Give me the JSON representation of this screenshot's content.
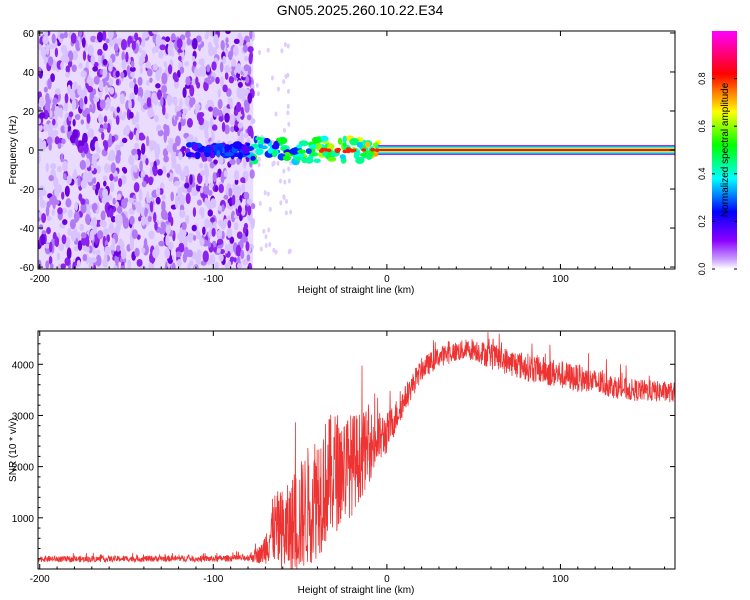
{
  "title": "GN05.2025.260.10.22.E34",
  "chart_data": [
    {
      "type": "heatmap",
      "name": "spectrogram",
      "xlabel": "Height of straight line (km)",
      "ylabel": "Frequency (Hz)",
      "xlim": [
        -201,
        166
      ],
      "ylim": [
        -61,
        61
      ],
      "xticks": [
        -200,
        -100,
        0,
        100
      ],
      "xtick_labels": [
        "-200",
        "-100",
        "0",
        "100"
      ],
      "yticks": [
        -60,
        -40,
        -20,
        0,
        20,
        40,
        60
      ],
      "ytick_labels": [
        "-60",
        "-40",
        "-20",
        "0",
        "20",
        "40",
        "60"
      ],
      "colorbar": {
        "label": "Normalized spectral amplitude",
        "range": [
          0,
          1
        ],
        "ticks": [
          0.0,
          0.2,
          0.4,
          0.6,
          0.8
        ],
        "tick_labels": [
          "0.0",
          "0.2",
          "0.4",
          "0.6",
          "0.8"
        ],
        "colors": [
          "#ffffff",
          "#8b00ff",
          "#0000ff",
          "#00ffff",
          "#00ff00",
          "#ffff00",
          "#ff0000",
          "#ff00ff"
        ]
      },
      "regions": [
        {
          "name": "noise",
          "x_range": [
            -201,
            -77
          ],
          "freq_range": [
            -61,
            61
          ],
          "amplitude": 0.1
        },
        {
          "name": "onset",
          "x_range": [
            -80,
            -5
          ],
          "center_freq": 0,
          "spread_hz": 6,
          "amplitude": 0.4
        },
        {
          "name": "carrier",
          "x_range": [
            -5,
            166
          ],
          "center_freq": 0,
          "amplitude": 1.0
        }
      ]
    },
    {
      "type": "line",
      "name": "snr",
      "xlabel": "Height of straight line (km)",
      "ylabel": "SNR (10 * v/v)",
      "xlim": [
        -201,
        166
      ],
      "ylim": [
        0,
        4650
      ],
      "xticks": [
        -200,
        -100,
        0,
        100
      ],
      "xtick_labels": [
        "-200",
        "-100",
        "0",
        "100"
      ],
      "yticks": [
        1000,
        2000,
        3000,
        4000
      ],
      "ytick_labels": [
        "1000",
        "2000",
        "3000",
        "4000"
      ],
      "color": "#ee3333",
      "series": [
        {
          "name": "SNR envelope",
          "x": [
            -201,
            -180,
            -150,
            -120,
            -100,
            -80,
            -72,
            -65,
            -58,
            -50,
            -40,
            -30,
            -20,
            -10,
            0,
            10,
            20,
            30,
            40,
            50,
            60,
            80,
            100,
            120,
            140,
            166
          ],
          "mean": [
            200,
            190,
            200,
            205,
            200,
            220,
            300,
            800,
            700,
            1000,
            1500,
            1900,
            2050,
            2400,
            2650,
            3300,
            3900,
            4150,
            4250,
            4300,
            4150,
            3950,
            3800,
            3650,
            3500,
            3450
          ],
          "amplitude": [
            60,
            60,
            60,
            60,
            60,
            70,
            200,
            700,
            900,
            1100,
            1300,
            1200,
            1000,
            700,
            400,
            250,
            220,
            200,
            200,
            220,
            250,
            280,
            280,
            250,
            220,
            200
          ]
        }
      ]
    }
  ]
}
